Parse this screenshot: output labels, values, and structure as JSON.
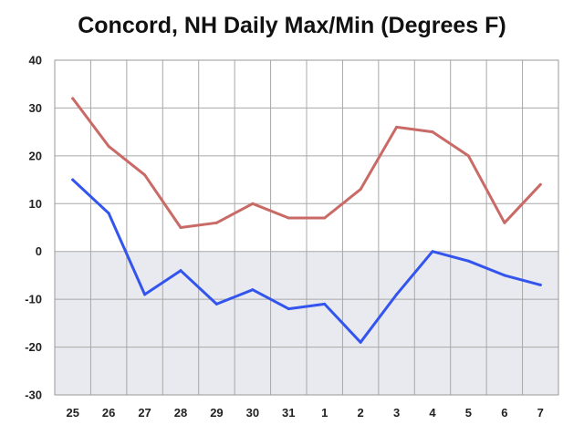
{
  "chart_data": {
    "type": "line",
    "title": "Concord, NH Daily Max/Min (Degrees F)",
    "xlabel": "",
    "ylabel": "",
    "categories": [
      "25",
      "26",
      "27",
      "28",
      "29",
      "30",
      "31",
      "1",
      "2",
      "3",
      "4",
      "5",
      "6",
      "7"
    ],
    "series": [
      {
        "color": "#c96a66",
        "values": [
          32,
          22,
          16,
          5,
          6,
          10,
          7,
          7,
          13,
          26,
          25,
          20,
          6,
          14
        ]
      },
      {
        "color": "#3355ee",
        "values": [
          15,
          8,
          -9,
          -4,
          -11,
          -8,
          -12,
          -11,
          -19,
          -9,
          0,
          -2,
          -5,
          -7
        ]
      }
    ],
    "ylim": [
      -30,
      40
    ],
    "yticks": [
      -30,
      -20,
      -10,
      0,
      10,
      20,
      30,
      40
    ],
    "grid": true,
    "legend": "none",
    "below_zero_fill_color": "#e8eaef"
  }
}
